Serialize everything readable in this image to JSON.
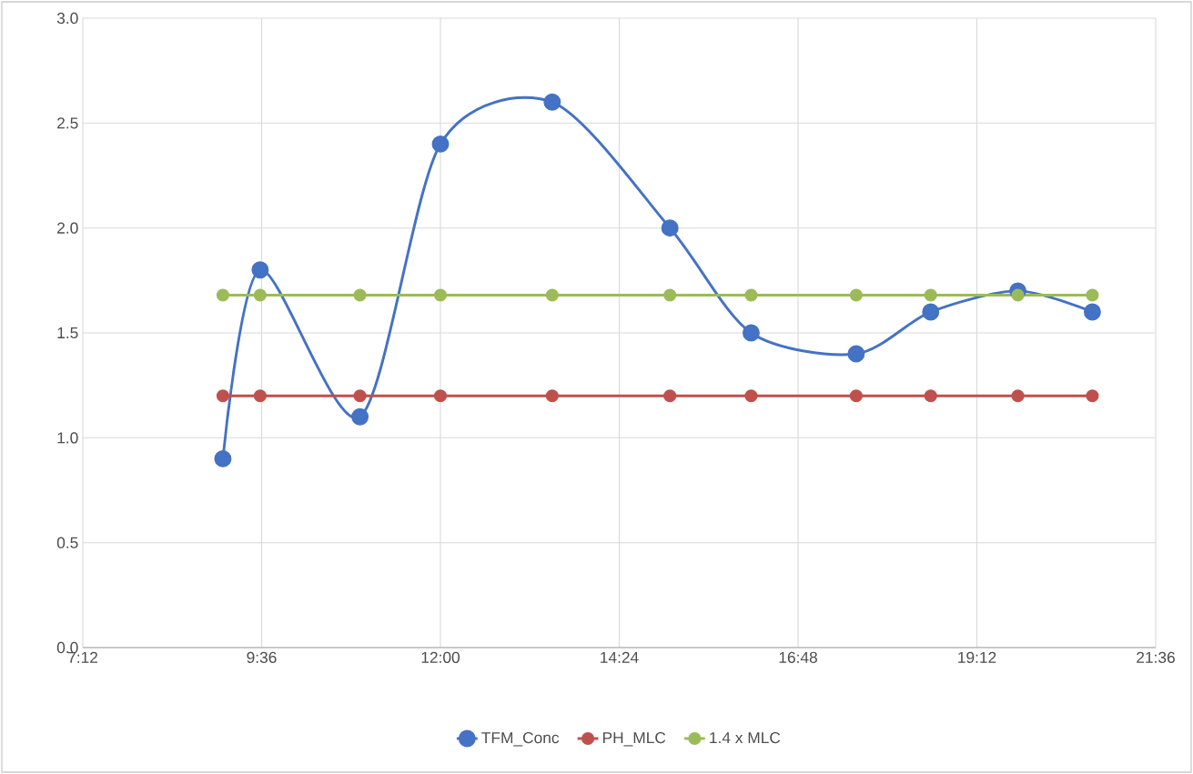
{
  "chart_data": {
    "type": "line",
    "x": [
      9.08,
      9.58,
      10.92,
      12.0,
      13.5,
      15.08,
      16.17,
      17.58,
      18.58,
      19.75,
      20.75
    ],
    "series": [
      {
        "name": "TFM_Conc",
        "color": "#4472c4",
        "values": [
          0.9,
          1.8,
          1.1,
          2.4,
          2.6,
          2.0,
          1.5,
          1.4,
          1.6,
          1.7,
          1.6
        ]
      },
      {
        "name": "PH_MLC",
        "color": "#c0504d",
        "values": [
          1.2,
          1.2,
          1.2,
          1.2,
          1.2,
          1.2,
          1.2,
          1.2,
          1.2,
          1.2,
          1.2
        ]
      },
      {
        "name": "1.4 x MLC",
        "color": "#9bbb59",
        "values": [
          1.68,
          1.68,
          1.68,
          1.68,
          1.68,
          1.68,
          1.68,
          1.68,
          1.68,
          1.68,
          1.68
        ]
      }
    ],
    "xlim": [
      7.2,
      21.6
    ],
    "xticks": [
      {
        "value": 7.2,
        "label": "7:12"
      },
      {
        "value": 9.6,
        "label": "9:36"
      },
      {
        "value": 12.0,
        "label": "12:00"
      },
      {
        "value": 14.4,
        "label": "14:24"
      },
      {
        "value": 16.8,
        "label": "16:48"
      },
      {
        "value": 19.2,
        "label": "19:12"
      },
      {
        "value": 21.6,
        "label": "21:36"
      }
    ],
    "ylim": [
      0,
      3
    ],
    "yticks": [
      {
        "value": 0,
        "label": "0.0"
      },
      {
        "value": 0.5,
        "label": "0.5"
      },
      {
        "value": 1,
        "label": "1.0"
      },
      {
        "value": 1.5,
        "label": "1.5"
      },
      {
        "value": 2,
        "label": "2.0"
      },
      {
        "value": 2.5,
        "label": "2.5"
      },
      {
        "value": 3,
        "label": "3.0"
      }
    ],
    "grid": true,
    "legend": "bottom",
    "marker": "circle",
    "line_style": "solid"
  }
}
